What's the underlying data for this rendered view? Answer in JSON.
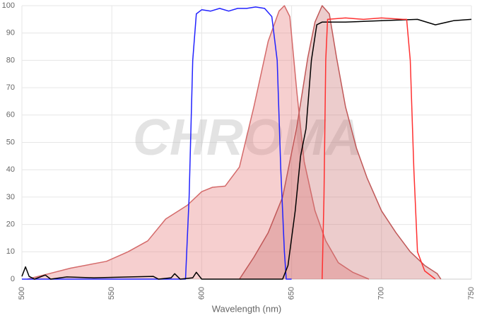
{
  "chart_data": {
    "type": "line",
    "watermark": "CHROMA",
    "x_label": "Wavelength (nm)",
    "xlim": [
      500,
      750
    ],
    "ylim": [
      0,
      100
    ],
    "xticks": [
      500,
      550,
      600,
      650,
      700,
      750
    ],
    "yticks": [
      0,
      10,
      20,
      30,
      40,
      50,
      60,
      70,
      80,
      90,
      100
    ],
    "grid": true,
    "series": [
      {
        "color": "#d46a6a",
        "fill": "rgba(232,130,130,0.38)",
        "x": [
          503,
          515,
          527,
          547,
          559,
          570,
          580,
          592,
          600,
          606,
          613,
          621,
          629,
          637,
          643,
          646,
          649,
          653,
          657,
          663,
          669,
          676,
          684,
          693
        ],
        "values": [
          0,
          2,
          4,
          6.5,
          10,
          14,
          22,
          27,
          32,
          33.6,
          34,
          41,
          63,
          87,
          98,
          100,
          96,
          68,
          43,
          25,
          14,
          6,
          2.5,
          0
        ]
      },
      {
        "color": "#c05858",
        "fill": "rgba(200,110,110,0.35)",
        "x": [
          621,
          629,
          637,
          645,
          653,
          659,
          663,
          667,
          671,
          675,
          680,
          686,
          692,
          700,
          708,
          716,
          724,
          731,
          733
        ],
        "values": [
          0,
          8,
          17,
          30,
          56,
          81,
          94,
          100,
          97,
          81,
          63,
          48,
          37,
          25,
          17,
          10,
          5,
          2,
          0
        ]
      },
      {
        "color": "#2222ff",
        "x": [
          500,
          590,
          591,
          593,
          595,
          597,
          600,
          605,
          610,
          615,
          620,
          625,
          630,
          635,
          639,
          642,
          644,
          646,
          647,
          650
        ],
        "values": [
          0,
          0,
          0,
          30,
          80,
          97,
          98.5,
          98,
          99,
          98,
          99,
          99,
          99.5,
          99,
          96,
          80,
          40,
          10,
          0,
          0
        ]
      },
      {
        "color": "#000000",
        "x": [
          500,
          502,
          504,
          507,
          513,
          516,
          525,
          540,
          560,
          573,
          576,
          583,
          585,
          588,
          595,
          597,
          600,
          620,
          645,
          648,
          652,
          655,
          658,
          661,
          664,
          667,
          680,
          700,
          720,
          730,
          740,
          750
        ],
        "values": [
          1,
          4.5,
          1,
          0,
          1.5,
          0,
          0.8,
          0.5,
          0.8,
          1,
          0,
          0.5,
          2,
          0,
          0.5,
          2.5,
          0,
          0,
          0,
          5,
          25,
          45,
          55,
          80,
          93,
          94,
          94,
          94.5,
          95,
          93,
          94.5,
          95
        ]
      },
      {
        "color": "#ff3030",
        "x": [
          667,
          668,
          669,
          670,
          680,
          690,
          700,
          712,
          714,
          716,
          718,
          720,
          724,
          730
        ],
        "values": [
          0,
          30,
          80,
          95,
          95.5,
          95,
          95.5,
          95,
          95,
          80,
          40,
          10,
          3,
          0
        ]
      }
    ]
  }
}
